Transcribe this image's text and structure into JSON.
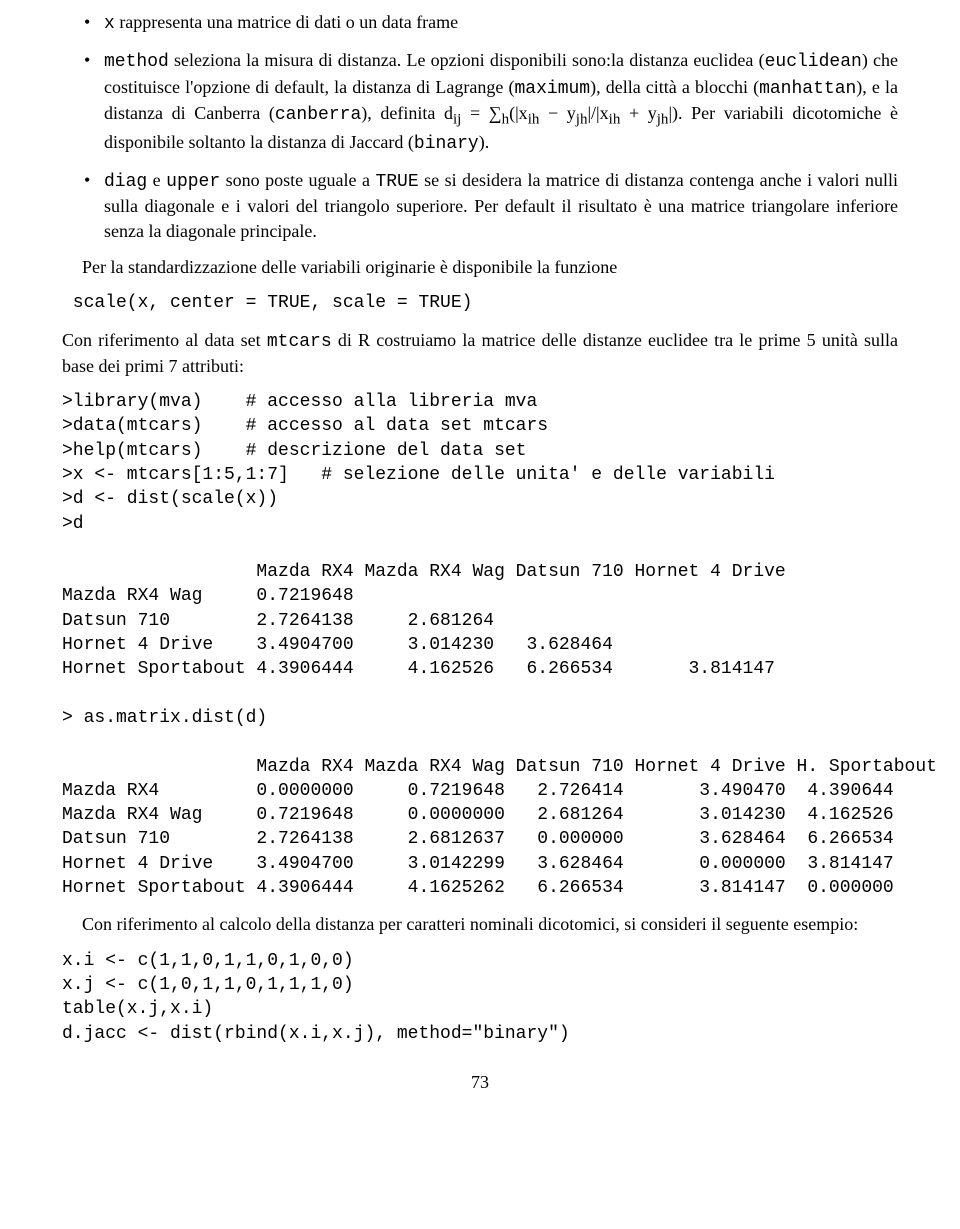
{
  "bullets": {
    "b1_pre": "",
    "b1_tt": "x",
    "b1_post": " rappresenta una matrice di dati o un data frame",
    "b2_tt": "method",
    "b2_post": " seleziona la misura di distanza. Le opzioni disponibili sono:la distanza euclidea (",
    "b2_tt2": "euclidean",
    "b2_mid2": ") che costituisce l'opzione di default, la distanza di Lagrange (",
    "b2_tt3": "maximum",
    "b2_mid3": "), della città a blocchi (",
    "b2_tt4": "manhattan",
    "b2_mid4": "), e la distanza di Canberra (",
    "b2_tt5": "canberra",
    "b2_mid5": "), definita d",
    "b2_sub1": "ij",
    "b2_mid6": " = ∑",
    "b2_sub2": "h",
    "b2_mid7": "(|x",
    "b2_sub3": "ih",
    "b2_mid8": " − y",
    "b2_sub4": "jh",
    "b2_mid9": "|/|x",
    "b2_sub5": "ih",
    "b2_mid10": " + y",
    "b2_sub6": "jh",
    "b2_mid11": "|). Per variabili dicotomiche è disponibile soltanto la distanza di Jaccard (",
    "b2_tt6": "binary",
    "b2_end": ").",
    "b3_tt1": "diag",
    "b3_mid1": " e ",
    "b3_tt2": "upper",
    "b3_mid2": " sono poste uguale a ",
    "b3_tt3": "TRUE",
    "b3_mid3": " se si desidera la matrice di distanza contenga anche i valori nulli sulla diagonale e i valori del triangolo superiore. Per default il risultato è una matrice triangolare inferiore senza la diagonale principale."
  },
  "p1": "Per la standardizzazione delle variabili originarie è disponibile la funzione",
  "code1": " scale(x, center = TRUE, scale = TRUE)",
  "p2_pre": "Con riferimento al data set ",
  "p2_tt": "mtcars",
  "p2_post": " di R costruiamo la matrice delle distanze euclidee tra le prime 5 unità sulla base dei primi 7 attributi:",
  "code2": ">library(mva)    # accesso alla libreria mva\n>data(mtcars)    # accesso al data set mtcars\n>help(mtcars)    # descrizione del data set\n>x <- mtcars[1:5,1:7]   # selezione delle unita' e delle variabili\n>d <- dist(scale(x))\n>d",
  "code3": "                  Mazda RX4 Mazda RX4 Wag Datsun 710 Hornet 4 Drive\nMazda RX4 Wag     0.7219648\nDatsun 710        2.7264138     2.681264\nHornet 4 Drive    3.4904700     3.014230   3.628464\nHornet Sportabout 4.3906444     4.162526   6.266534       3.814147",
  "code4": "> as.matrix.dist(d)",
  "code5": "                  Mazda RX4 Mazda RX4 Wag Datsun 710 Hornet 4 Drive H. Sportabout\nMazda RX4         0.0000000     0.7219648   2.726414       3.490470  4.390644\nMazda RX4 Wag     0.7219648     0.0000000   2.681264       3.014230  4.162526\nDatsun 710        2.7264138     2.6812637   0.000000       3.628464  6.266534\nHornet 4 Drive    3.4904700     3.0142299   3.628464       0.000000  3.814147\nHornet Sportabout 4.3906444     4.1625262   6.266534       3.814147  0.000000",
  "p3": "Con riferimento al calcolo della distanza per caratteri nominali dicotomici, si consideri il seguente esempio:",
  "code6": "x.i <- c(1,1,0,1,1,0,1,0,0)\nx.j <- c(1,0,1,1,0,1,1,1,0)\ntable(x.j,x.i)\nd.jacc <- dist(rbind(x.i,x.j), method=\"binary\")",
  "pagenum": "73"
}
